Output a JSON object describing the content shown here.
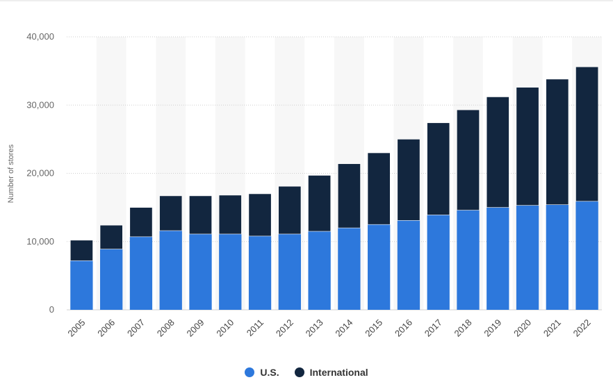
{
  "chart_data": {
    "type": "bar",
    "stacked": true,
    "categories": [
      "2005",
      "2006",
      "2007",
      "2008",
      "2009",
      "2010",
      "2011",
      "2012",
      "2013",
      "2014",
      "2015",
      "2016",
      "2017",
      "2018",
      "2019",
      "2020",
      "2021",
      "2022"
    ],
    "series": [
      {
        "name": "U.S.",
        "color": "#2d78dc",
        "values": [
          7200,
          8900,
          10700,
          11600,
          11100,
          11100,
          10800,
          11100,
          11500,
          12000,
          12500,
          13100,
          13900,
          14600,
          15000,
          15300,
          15400,
          15900
        ]
      },
      {
        "name": "International",
        "color": "#12263f",
        "values": [
          3000,
          3500,
          4300,
          5100,
          5600,
          5700,
          6200,
          7000,
          8200,
          9400,
          10500,
          11900,
          13500,
          14700,
          16200,
          17300,
          18400,
          19700
        ]
      }
    ],
    "ylabel": "Number of stores",
    "xlabel": "",
    "ylim": [
      0,
      40000
    ],
    "yticks": [
      "0",
      "10,000",
      "20,000",
      "30,000",
      "40,000"
    ],
    "ytick_values": [
      0,
      10000,
      20000,
      30000,
      40000
    ],
    "grid": true,
    "legend_position": "bottom-center"
  }
}
